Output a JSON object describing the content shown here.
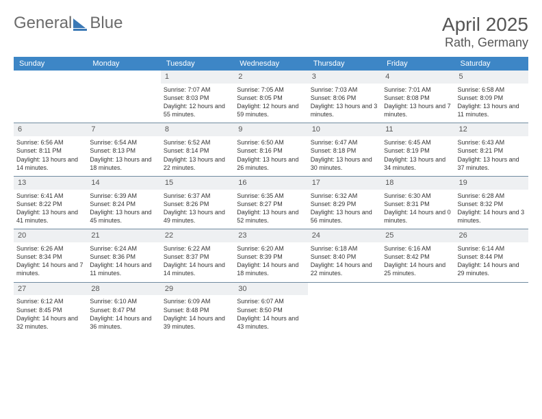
{
  "brand": {
    "part1": "General",
    "part2": "Blue"
  },
  "title": "April 2025",
  "location": "Rath, Germany",
  "colors": {
    "header_bg": "#3d86c6",
    "header_text": "#ffffff",
    "daynum_bg": "#eef0f2",
    "week_divider": "#6f8aa0",
    "text": "#333333",
    "page_bg": "#ffffff"
  },
  "font": {
    "family": "Arial",
    "title_size_pt": 28,
    "header_size_pt": 11,
    "cell_size_pt": 9
  },
  "day_names": [
    "Sunday",
    "Monday",
    "Tuesday",
    "Wednesday",
    "Thursday",
    "Friday",
    "Saturday"
  ],
  "weeks": [
    [
      null,
      null,
      {
        "n": "1",
        "sunrise": "7:07 AM",
        "sunset": "8:03 PM",
        "daylight": "12 hours and 55 minutes."
      },
      {
        "n": "2",
        "sunrise": "7:05 AM",
        "sunset": "8:05 PM",
        "daylight": "12 hours and 59 minutes."
      },
      {
        "n": "3",
        "sunrise": "7:03 AM",
        "sunset": "8:06 PM",
        "daylight": "13 hours and 3 minutes."
      },
      {
        "n": "4",
        "sunrise": "7:01 AM",
        "sunset": "8:08 PM",
        "daylight": "13 hours and 7 minutes."
      },
      {
        "n": "5",
        "sunrise": "6:58 AM",
        "sunset": "8:09 PM",
        "daylight": "13 hours and 11 minutes."
      }
    ],
    [
      {
        "n": "6",
        "sunrise": "6:56 AM",
        "sunset": "8:11 PM",
        "daylight": "13 hours and 14 minutes."
      },
      {
        "n": "7",
        "sunrise": "6:54 AM",
        "sunset": "8:13 PM",
        "daylight": "13 hours and 18 minutes."
      },
      {
        "n": "8",
        "sunrise": "6:52 AM",
        "sunset": "8:14 PM",
        "daylight": "13 hours and 22 minutes."
      },
      {
        "n": "9",
        "sunrise": "6:50 AM",
        "sunset": "8:16 PM",
        "daylight": "13 hours and 26 minutes."
      },
      {
        "n": "10",
        "sunrise": "6:47 AM",
        "sunset": "8:18 PM",
        "daylight": "13 hours and 30 minutes."
      },
      {
        "n": "11",
        "sunrise": "6:45 AM",
        "sunset": "8:19 PM",
        "daylight": "13 hours and 34 minutes."
      },
      {
        "n": "12",
        "sunrise": "6:43 AM",
        "sunset": "8:21 PM",
        "daylight": "13 hours and 37 minutes."
      }
    ],
    [
      {
        "n": "13",
        "sunrise": "6:41 AM",
        "sunset": "8:22 PM",
        "daylight": "13 hours and 41 minutes."
      },
      {
        "n": "14",
        "sunrise": "6:39 AM",
        "sunset": "8:24 PM",
        "daylight": "13 hours and 45 minutes."
      },
      {
        "n": "15",
        "sunrise": "6:37 AM",
        "sunset": "8:26 PM",
        "daylight": "13 hours and 49 minutes."
      },
      {
        "n": "16",
        "sunrise": "6:35 AM",
        "sunset": "8:27 PM",
        "daylight": "13 hours and 52 minutes."
      },
      {
        "n": "17",
        "sunrise": "6:32 AM",
        "sunset": "8:29 PM",
        "daylight": "13 hours and 56 minutes."
      },
      {
        "n": "18",
        "sunrise": "6:30 AM",
        "sunset": "8:31 PM",
        "daylight": "14 hours and 0 minutes."
      },
      {
        "n": "19",
        "sunrise": "6:28 AM",
        "sunset": "8:32 PM",
        "daylight": "14 hours and 3 minutes."
      }
    ],
    [
      {
        "n": "20",
        "sunrise": "6:26 AM",
        "sunset": "8:34 PM",
        "daylight": "14 hours and 7 minutes."
      },
      {
        "n": "21",
        "sunrise": "6:24 AM",
        "sunset": "8:36 PM",
        "daylight": "14 hours and 11 minutes."
      },
      {
        "n": "22",
        "sunrise": "6:22 AM",
        "sunset": "8:37 PM",
        "daylight": "14 hours and 14 minutes."
      },
      {
        "n": "23",
        "sunrise": "6:20 AM",
        "sunset": "8:39 PM",
        "daylight": "14 hours and 18 minutes."
      },
      {
        "n": "24",
        "sunrise": "6:18 AM",
        "sunset": "8:40 PM",
        "daylight": "14 hours and 22 minutes."
      },
      {
        "n": "25",
        "sunrise": "6:16 AM",
        "sunset": "8:42 PM",
        "daylight": "14 hours and 25 minutes."
      },
      {
        "n": "26",
        "sunrise": "6:14 AM",
        "sunset": "8:44 PM",
        "daylight": "14 hours and 29 minutes."
      }
    ],
    [
      {
        "n": "27",
        "sunrise": "6:12 AM",
        "sunset": "8:45 PM",
        "daylight": "14 hours and 32 minutes."
      },
      {
        "n": "28",
        "sunrise": "6:10 AM",
        "sunset": "8:47 PM",
        "daylight": "14 hours and 36 minutes."
      },
      {
        "n": "29",
        "sunrise": "6:09 AM",
        "sunset": "8:48 PM",
        "daylight": "14 hours and 39 minutes."
      },
      {
        "n": "30",
        "sunrise": "6:07 AM",
        "sunset": "8:50 PM",
        "daylight": "14 hours and 43 minutes."
      },
      null,
      null,
      null
    ]
  ],
  "labels": {
    "sunrise_prefix": "Sunrise: ",
    "sunset_prefix": "Sunset: ",
    "daylight_prefix": "Daylight: "
  }
}
